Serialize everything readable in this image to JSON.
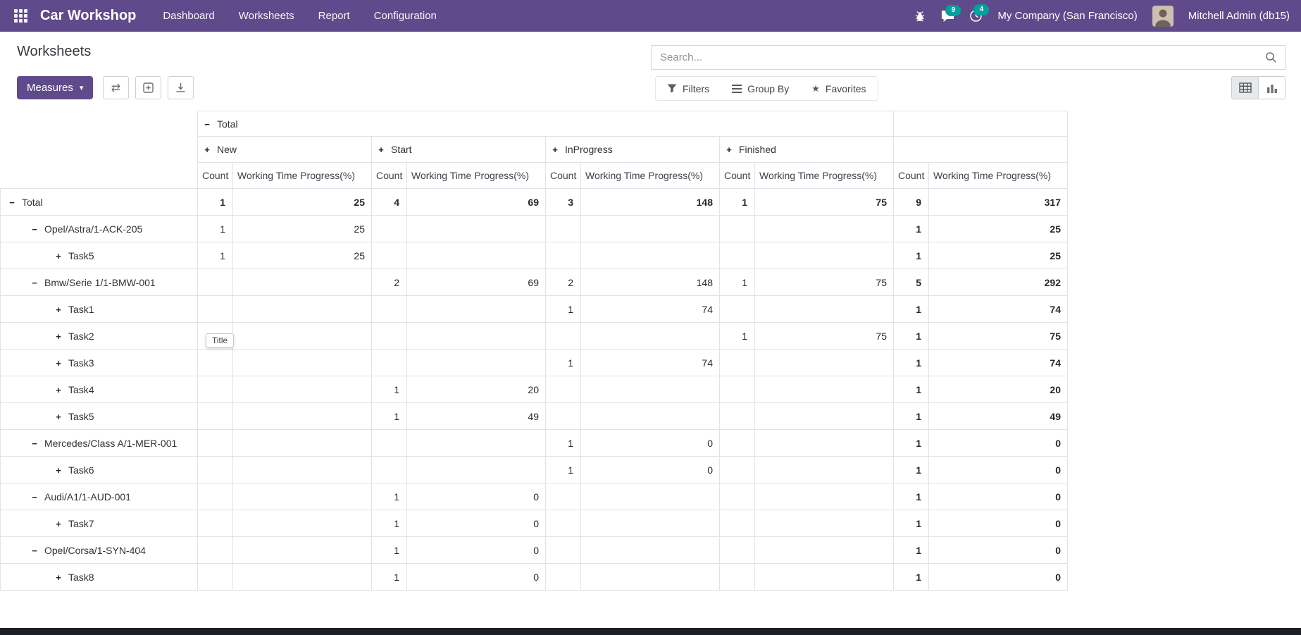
{
  "colors": {
    "accent": "#5f4b8b",
    "badge": "#00a09d"
  },
  "icons": {
    "plus": "+",
    "minus": "−",
    "caret_down": "▾",
    "flip_axis": "⇄",
    "star": "★"
  },
  "navbar": {
    "app_name": "Car Workshop",
    "menu_items": [
      "Dashboard",
      "Worksheets",
      "Report",
      "Configuration"
    ],
    "messages_badge": "9",
    "activities_badge": "4",
    "company": "My Company (San Francisco)",
    "user": "Mitchell Admin (db15)"
  },
  "page": {
    "title": "Worksheets"
  },
  "search": {
    "placeholder": "Search..."
  },
  "control_panel": {
    "measures_label": "Measures",
    "filters_label": "Filters",
    "group_by_label": "Group By",
    "favorites_label": "Favorites"
  },
  "tooltip": {
    "text": "Title"
  },
  "pivot": {
    "col_total_label": "Total",
    "groups": [
      "New",
      "Start",
      "InProgress",
      "Finished"
    ],
    "measures": [
      "Count",
      "Working Time Progress(%)"
    ],
    "rows": [
      {
        "label": "Total",
        "level": 0,
        "icon": "minus",
        "bold": true,
        "values": [
          "1",
          "25",
          "4",
          "69",
          "3",
          "148",
          "1",
          "75",
          "9",
          "317"
        ]
      },
      {
        "label": "Opel/Astra/1-ACK-205",
        "level": 1,
        "icon": "minus",
        "bold": false,
        "values": [
          "1",
          "25",
          "",
          "",
          "",
          "",
          "",
          "",
          "1",
          "25"
        ]
      },
      {
        "label": "Task5",
        "level": 2,
        "icon": "plus",
        "bold": false,
        "values": [
          "1",
          "25",
          "",
          "",
          "",
          "",
          "",
          "",
          "1",
          "25"
        ]
      },
      {
        "label": "Bmw/Serie 1/1-BMW-001",
        "level": 1,
        "icon": "minus",
        "bold": false,
        "values": [
          "",
          "",
          "2",
          "69",
          "2",
          "148",
          "1",
          "75",
          "5",
          "292"
        ]
      },
      {
        "label": "Task1",
        "level": 2,
        "icon": "plus",
        "bold": false,
        "values": [
          "",
          "",
          "",
          "",
          "1",
          "74",
          "",
          "",
          "1",
          "74"
        ]
      },
      {
        "label": "Task2",
        "level": 2,
        "icon": "plus",
        "bold": false,
        "values": [
          "",
          "",
          "",
          "",
          "",
          "",
          "1",
          "75",
          "1",
          "75"
        ]
      },
      {
        "label": "Task3",
        "level": 2,
        "icon": "plus",
        "bold": false,
        "values": [
          "",
          "",
          "",
          "",
          "1",
          "74",
          "",
          "",
          "1",
          "74"
        ]
      },
      {
        "label": "Task4",
        "level": 2,
        "icon": "plus",
        "bold": false,
        "values": [
          "",
          "",
          "1",
          "20",
          "",
          "",
          "",
          "",
          "1",
          "20"
        ]
      },
      {
        "label": "Task5",
        "level": 2,
        "icon": "plus",
        "bold": false,
        "values": [
          "",
          "",
          "1",
          "49",
          "",
          "",
          "",
          "",
          "1",
          "49"
        ]
      },
      {
        "label": "Mercedes/Class A/1-MER-001",
        "level": 1,
        "icon": "minus",
        "bold": false,
        "values": [
          "",
          "",
          "",
          "",
          "1",
          "0",
          "",
          "",
          "1",
          "0"
        ]
      },
      {
        "label": "Task6",
        "level": 2,
        "icon": "plus",
        "bold": false,
        "values": [
          "",
          "",
          "",
          "",
          "1",
          "0",
          "",
          "",
          "1",
          "0"
        ]
      },
      {
        "label": "Audi/A1/1-AUD-001",
        "level": 1,
        "icon": "minus",
        "bold": false,
        "values": [
          "",
          "",
          "1",
          "0",
          "",
          "",
          "",
          "",
          "1",
          "0"
        ]
      },
      {
        "label": "Task7",
        "level": 2,
        "icon": "plus",
        "bold": false,
        "values": [
          "",
          "",
          "1",
          "0",
          "",
          "",
          "",
          "",
          "1",
          "0"
        ]
      },
      {
        "label": "Opel/Corsa/1-SYN-404",
        "level": 1,
        "icon": "minus",
        "bold": false,
        "values": [
          "",
          "",
          "1",
          "0",
          "",
          "",
          "",
          "",
          "1",
          "0"
        ]
      },
      {
        "label": "Task8",
        "level": 2,
        "icon": "plus",
        "bold": false,
        "values": [
          "",
          "",
          "1",
          "0",
          "",
          "",
          "",
          "",
          "1",
          "0"
        ]
      }
    ]
  }
}
